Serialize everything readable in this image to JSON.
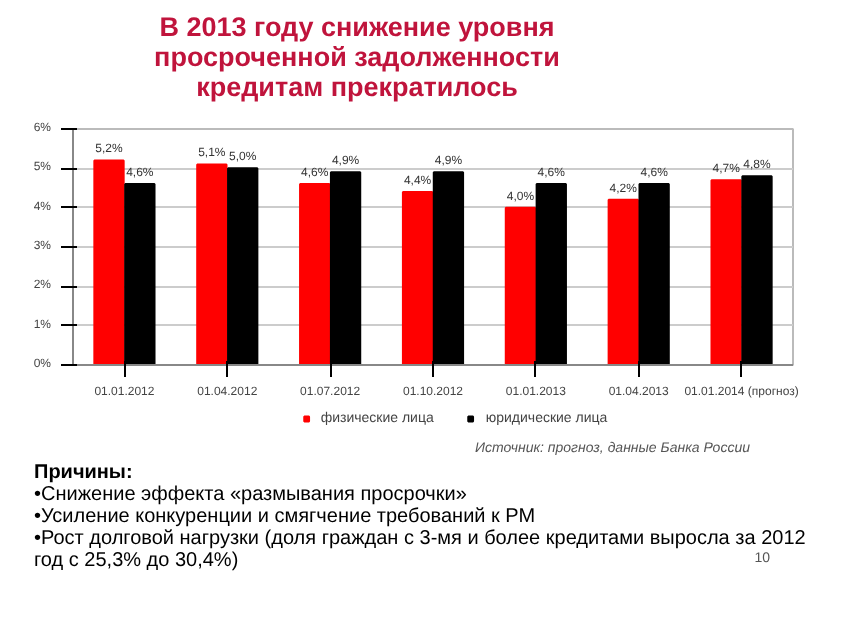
{
  "chart_data": {
    "type": "bar",
    "title": "В 2013 году снижение уровня просроченной задолженности кредитам прекратилось",
    "categories": [
      "01.01.2012",
      "01.04.2012",
      "01.07.2012",
      "01.10.2012",
      "01.01.2013",
      "01.04.2013",
      "01.01.2014 (прогноз)"
    ],
    "series": [
      {
        "name": "физические лица",
        "color": "#ff0000",
        "values": [
          5.2,
          5.1,
          4.6,
          4.4,
          4.0,
          4.2,
          4.7
        ],
        "value_labels": [
          "5,2%",
          "5,1%",
          "4,6%",
          "4,4%",
          "4,0%",
          "4,2%",
          "4,7%"
        ]
      },
      {
        "name": "юридические лица",
        "color": "#000000",
        "values": [
          4.6,
          5.0,
          4.9,
          4.9,
          4.6,
          4.6,
          4.8
        ],
        "value_labels": [
          "4,6%",
          "5,0%",
          "4,9%",
          "4,9%",
          "4,6%",
          "4,6%",
          "4,8%"
        ]
      }
    ],
    "ylim": [
      0,
      6
    ],
    "yticks": [
      {
        "value": 0,
        "label": "0%"
      },
      {
        "value": 1,
        "label": "1%"
      },
      {
        "value": 2,
        "label": "2%"
      },
      {
        "value": 3,
        "label": "3%"
      },
      {
        "value": 4,
        "label": "4%"
      },
      {
        "value": 5,
        "label": "5%"
      },
      {
        "value": 6,
        "label": "6%"
      }
    ],
    "grid": "y",
    "legend": "bottom",
    "annotations": [
      "Источник: прогноз, данные Банка России",
      "Причины:",
      "•Снижение эффекта «размывания просрочки»",
      "•Усиление конкуренции и смягчение требований к РМ",
      "•Рост долговой нагрузки (доля граждан с 3-мя и более кредитами выросла за 2012 год с 25,3% до 30,4%)",
      "10"
    ]
  }
}
